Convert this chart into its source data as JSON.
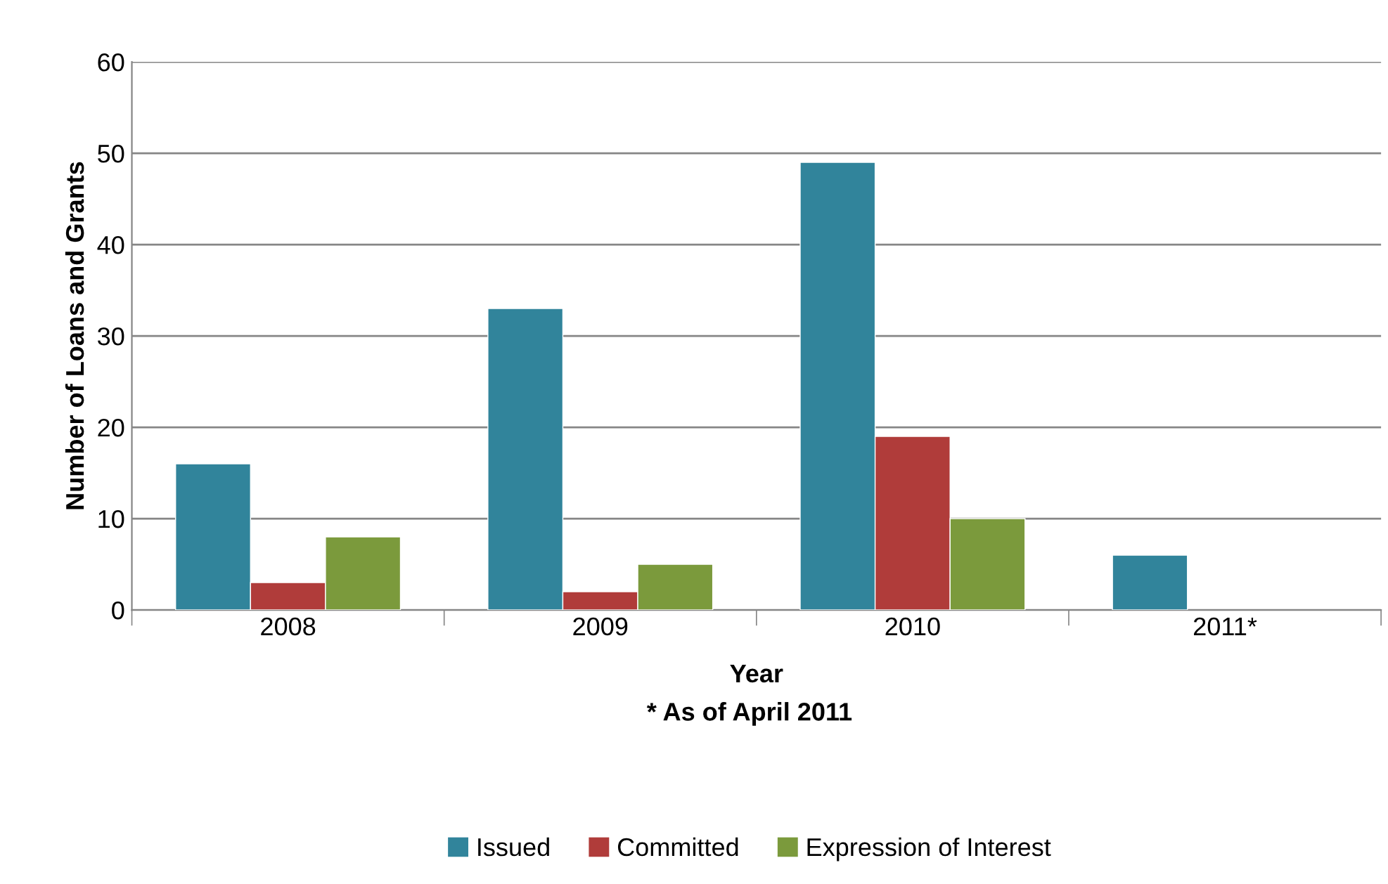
{
  "chart_data": {
    "type": "bar",
    "xlabel": "Year",
    "ylabel": "Number of Loans and Grants",
    "annotations": [
      "* As of April 2011"
    ],
    "categories": [
      "2008",
      "2009",
      "2010",
      "2011*"
    ],
    "series": [
      {
        "name": "Issued",
        "color": "#31849b",
        "values": [
          16,
          33,
          49,
          6
        ]
      },
      {
        "name": "Committed",
        "color": "#b03c3a",
        "values": [
          3,
          2,
          19,
          null
        ]
      },
      {
        "name": "Expression of Interest",
        "color": "#7b9a3c",
        "values": [
          8,
          5,
          10,
          null
        ]
      }
    ],
    "ylim": [
      0,
      60
    ],
    "yticks": [
      0,
      10,
      20,
      30,
      40,
      50,
      60
    ],
    "grid": "y",
    "legend": "bottom"
  }
}
